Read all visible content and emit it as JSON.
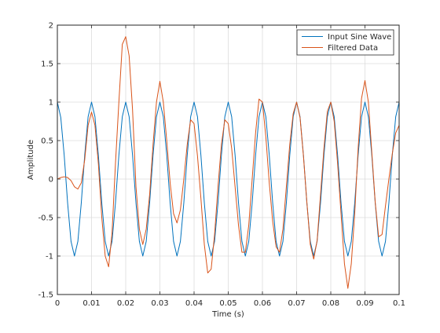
{
  "chart_data": {
    "type": "line",
    "xlabel": "Time (s)",
    "ylabel": "Amplitude",
    "xlim": [
      0,
      0.1
    ],
    "ylim": [
      -1.5,
      2
    ],
    "xticks": [
      0,
      0.01,
      0.02,
      0.03,
      0.04,
      0.05,
      0.06,
      0.07,
      0.08,
      0.09,
      0.1
    ],
    "yticks": [
      -1.5,
      -1,
      -0.5,
      0,
      0.5,
      1,
      1.5,
      2
    ],
    "xtick_labels": [
      "0",
      "0.01",
      "0.02",
      "0.03",
      "0.04",
      "0.05",
      "0.06",
      "0.07",
      "0.08",
      "0.09",
      "0.1"
    ],
    "ytick_labels": [
      "-1.5",
      "-1",
      "-0.5",
      "0",
      "0.5",
      "1",
      "1.5",
      "2"
    ],
    "grid": true,
    "legend_position": "top-right",
    "series": [
      {
        "name": "Input Sine Wave",
        "color": "#0072bd",
        "x": [
          0,
          0.001,
          0.002,
          0.003,
          0.004,
          0.005,
          0.006,
          0.007,
          0.008,
          0.009,
          0.01,
          0.011,
          0.012,
          0.013,
          0.014,
          0.015,
          0.016,
          0.017,
          0.018,
          0.019,
          0.02,
          0.021,
          0.022,
          0.023,
          0.024,
          0.025,
          0.026,
          0.027,
          0.028,
          0.029,
          0.03,
          0.031,
          0.032,
          0.033,
          0.034,
          0.035,
          0.036,
          0.037,
          0.038,
          0.039,
          0.04,
          0.041,
          0.042,
          0.043,
          0.044,
          0.045,
          0.046,
          0.047,
          0.048,
          0.049,
          0.05,
          0.051,
          0.052,
          0.053,
          0.054,
          0.055,
          0.056,
          0.057,
          0.058,
          0.059,
          0.06,
          0.061,
          0.062,
          0.063,
          0.064,
          0.065,
          0.066,
          0.067,
          0.068,
          0.069,
          0.07,
          0.071,
          0.072,
          0.073,
          0.074,
          0.075,
          0.076,
          0.077,
          0.078,
          0.079,
          0.08,
          0.081,
          0.082,
          0.083,
          0.084,
          0.085,
          0.086,
          0.087,
          0.088,
          0.089,
          0.09,
          0.091,
          0.092,
          0.093,
          0.094,
          0.095,
          0.096,
          0.097,
          0.098,
          0.099,
          0.1
        ],
        "y": [
          1.0,
          0.8,
          0.31,
          -0.31,
          -0.81,
          -1.0,
          -0.81,
          -0.31,
          0.31,
          0.81,
          1.0,
          0.81,
          0.31,
          -0.31,
          -0.81,
          -1.0,
          -0.81,
          -0.31,
          0.31,
          0.81,
          1.0,
          0.81,
          0.31,
          -0.31,
          -0.81,
          -1.0,
          -0.81,
          -0.31,
          0.31,
          0.81,
          1.0,
          0.81,
          0.31,
          -0.31,
          -0.81,
          -1.0,
          -0.81,
          -0.31,
          0.31,
          0.81,
          1.0,
          0.81,
          0.31,
          -0.31,
          -0.81,
          -1.0,
          -0.81,
          -0.31,
          0.31,
          0.81,
          1.0,
          0.81,
          0.31,
          -0.31,
          -0.81,
          -1.0,
          -0.81,
          -0.31,
          0.31,
          0.81,
          1.0,
          0.81,
          0.31,
          -0.31,
          -0.81,
          -1.0,
          -0.81,
          -0.31,
          0.31,
          0.81,
          1.0,
          0.81,
          0.31,
          -0.31,
          -0.81,
          -1.0,
          -0.81,
          -0.31,
          0.31,
          0.81,
          1.0,
          0.81,
          0.31,
          -0.31,
          -0.81,
          -1.0,
          -0.81,
          -0.31,
          0.31,
          0.81,
          1.0,
          0.81,
          0.31,
          -0.31,
          -0.81,
          -1.0,
          -0.81,
          -0.31,
          0.31,
          0.81,
          1.0
        ]
      },
      {
        "name": "Filtered Data",
        "color": "#d95319",
        "x": [
          0,
          0.001,
          0.002,
          0.003,
          0.004,
          0.005,
          0.006,
          0.007,
          0.008,
          0.009,
          0.01,
          0.011,
          0.012,
          0.013,
          0.014,
          0.015,
          0.016,
          0.017,
          0.018,
          0.019,
          0.02,
          0.021,
          0.022,
          0.023,
          0.024,
          0.025,
          0.026,
          0.027,
          0.028,
          0.029,
          0.03,
          0.031,
          0.032,
          0.033,
          0.034,
          0.035,
          0.036,
          0.037,
          0.038,
          0.039,
          0.04,
          0.041,
          0.042,
          0.043,
          0.044,
          0.045,
          0.046,
          0.047,
          0.048,
          0.049,
          0.05,
          0.051,
          0.052,
          0.053,
          0.054,
          0.055,
          0.056,
          0.057,
          0.058,
          0.059,
          0.06,
          0.061,
          0.062,
          0.063,
          0.064,
          0.065,
          0.066,
          0.067,
          0.068,
          0.069,
          0.07,
          0.071,
          0.072,
          0.073,
          0.074,
          0.075,
          0.076,
          0.077,
          0.078,
          0.079,
          0.08,
          0.081,
          0.082,
          0.083,
          0.084,
          0.085,
          0.086,
          0.087,
          0.088,
          0.089,
          0.09,
          0.091,
          0.092,
          0.093,
          0.094,
          0.095,
          0.096,
          0.097,
          0.098,
          0.099,
          0.1
        ],
        "y": [
          0.0,
          0.02,
          0.03,
          0.02,
          -0.02,
          -0.1,
          -0.13,
          -0.05,
          0.25,
          0.7,
          0.87,
          0.7,
          0.2,
          -0.5,
          -1.0,
          -1.14,
          -0.7,
          0.2,
          1.0,
          1.75,
          1.85,
          1.6,
          0.9,
          -0.1,
          -0.65,
          -0.85,
          -0.65,
          -0.2,
          0.45,
          1.0,
          1.27,
          1.0,
          0.5,
          -0.05,
          -0.45,
          -0.57,
          -0.4,
          0.0,
          0.45,
          0.77,
          0.72,
          0.3,
          -0.25,
          -0.85,
          -1.22,
          -1.17,
          -0.72,
          -0.1,
          0.45,
          0.77,
          0.72,
          0.4,
          -0.1,
          -0.6,
          -0.95,
          -0.95,
          -0.6,
          0.0,
          0.6,
          1.04,
          1.0,
          0.55,
          -0.05,
          -0.55,
          -0.88,
          -0.95,
          -0.65,
          -0.1,
          0.45,
          0.85,
          1.0,
          0.8,
          0.3,
          -0.3,
          -0.85,
          -1.04,
          -0.8,
          -0.2,
          0.4,
          0.88,
          1.0,
          0.75,
          0.2,
          -0.45,
          -1.1,
          -1.42,
          -1.1,
          -0.45,
          0.4,
          1.05,
          1.28,
          1.0,
          0.35,
          -0.3,
          -0.75,
          -0.72,
          -0.35,
          0.0,
          0.33,
          0.6,
          0.7
        ]
      }
    ]
  }
}
